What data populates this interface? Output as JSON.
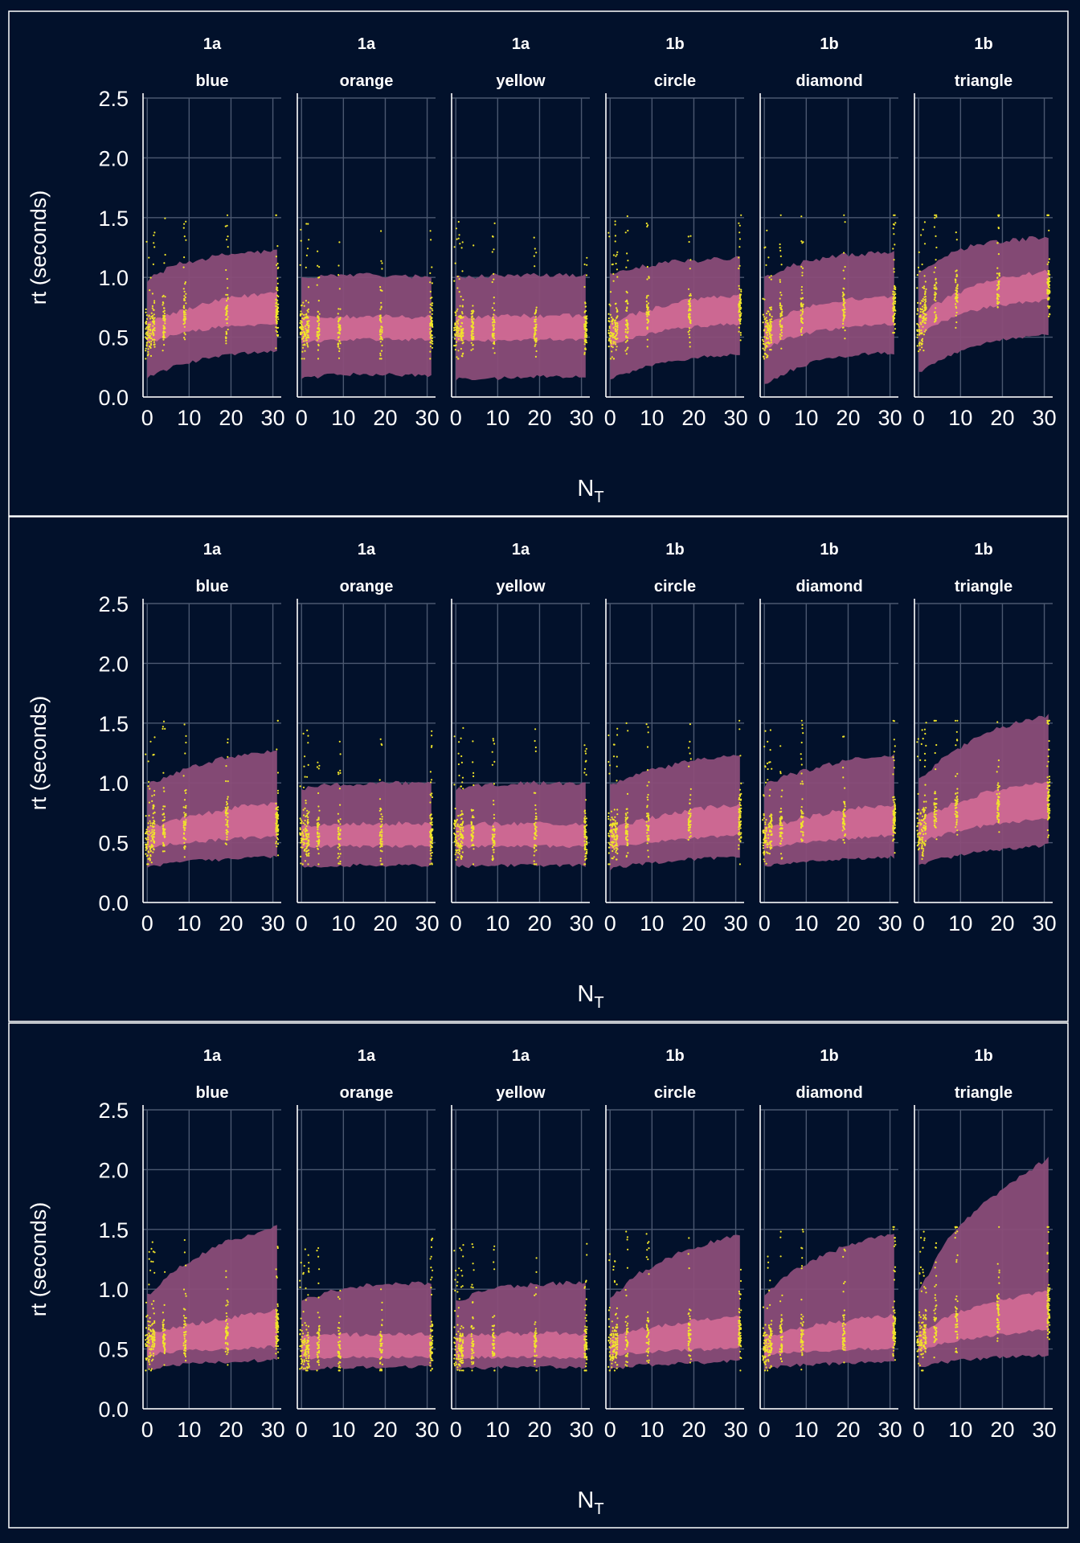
{
  "figure": {
    "background": "#02112b",
    "frame_color": "#ffffff",
    "grid_color": "#4b5870",
    "text_color": "#ffffff",
    "band_outer_color": "#8a4d78",
    "band_inner_color": "#d06a94",
    "point_color": "#f1e52a"
  },
  "chart_data": [
    {
      "type": "scatter",
      "xlabel": "N",
      "xlabel_subscript": "T",
      "ylabel": "rt (seconds)",
      "xlim": [
        -1,
        32
      ],
      "ylim": [
        0,
        2.5
      ],
      "x_ticks": [
        0,
        10,
        20,
        30
      ],
      "y_ticks": [
        "0.0",
        "0.5",
        "1.0",
        "1.5",
        "2.0",
        "2.5"
      ],
      "x_tick_labels": [
        "0",
        "10",
        "20",
        "30"
      ],
      "facets": [
        {
          "strip1": "1a",
          "strip2": "blue",
          "outer_lo": [
            0.17,
            0.25,
            0.31,
            0.35,
            0.37,
            0.38
          ],
          "inner_lo": [
            0.45,
            0.52,
            0.56,
            0.59,
            0.6,
            0.62
          ],
          "inner_hi": [
            0.62,
            0.7,
            0.76,
            0.82,
            0.85,
            0.88
          ],
          "outer_hi": [
            0.98,
            1.1,
            1.15,
            1.19,
            1.21,
            1.22
          ]
        },
        {
          "strip1": "1a",
          "strip2": "orange",
          "outer_lo": [
            0.15,
            0.18,
            0.19,
            0.19,
            0.18,
            0.18
          ],
          "inner_lo": [
            0.46,
            0.47,
            0.48,
            0.48,
            0.48,
            0.48
          ],
          "inner_hi": [
            0.67,
            0.67,
            0.67,
            0.67,
            0.67,
            0.67
          ],
          "outer_hi": [
            1.0,
            1.02,
            1.02,
            1.02,
            1.01,
            1.01
          ]
        },
        {
          "strip1": "1a",
          "strip2": "yellow",
          "outer_lo": [
            0.15,
            0.15,
            0.16,
            0.17,
            0.17,
            0.17
          ],
          "inner_lo": [
            0.47,
            0.47,
            0.48,
            0.48,
            0.48,
            0.48
          ],
          "inner_hi": [
            0.67,
            0.67,
            0.68,
            0.68,
            0.68,
            0.68
          ],
          "outer_hi": [
            1.0,
            1.01,
            1.02,
            1.02,
            1.02,
            1.02
          ]
        },
        {
          "strip1": "1b",
          "strip2": "circle",
          "outer_lo": [
            0.15,
            0.23,
            0.28,
            0.32,
            0.34,
            0.36
          ],
          "inner_lo": [
            0.43,
            0.5,
            0.55,
            0.58,
            0.6,
            0.61
          ],
          "inner_hi": [
            0.62,
            0.7,
            0.76,
            0.81,
            0.83,
            0.85
          ],
          "outer_hi": [
            1.02,
            1.08,
            1.12,
            1.14,
            1.15,
            1.16
          ]
        },
        {
          "strip1": "1b",
          "strip2": "diamond",
          "outer_lo": [
            0.1,
            0.22,
            0.3,
            0.34,
            0.36,
            0.37
          ],
          "inner_lo": [
            0.4,
            0.5,
            0.55,
            0.58,
            0.6,
            0.61
          ],
          "inner_hi": [
            0.6,
            0.7,
            0.77,
            0.81,
            0.83,
            0.85
          ],
          "outer_hi": [
            1.0,
            1.1,
            1.15,
            1.19,
            1.2,
            1.21
          ]
        },
        {
          "strip1": "1b",
          "strip2": "triangle",
          "outer_lo": [
            0.2,
            0.33,
            0.42,
            0.47,
            0.5,
            0.52
          ],
          "inner_lo": [
            0.52,
            0.64,
            0.72,
            0.76,
            0.79,
            0.81
          ],
          "inner_hi": [
            0.68,
            0.82,
            0.92,
            0.98,
            1.02,
            1.05
          ],
          "outer_hi": [
            1.05,
            1.18,
            1.26,
            1.3,
            1.32,
            1.34
          ]
        }
      ]
    },
    {
      "type": "scatter",
      "xlabel": "N",
      "xlabel_subscript": "T",
      "ylabel": "rt (seconds)",
      "xlim": [
        -1,
        32
      ],
      "ylim": [
        0,
        2.5
      ],
      "x_ticks": [
        0,
        10,
        20,
        30
      ],
      "y_ticks": [
        "0.0",
        "0.5",
        "1.0",
        "1.5",
        "2.0",
        "2.5"
      ],
      "x_tick_labels": [
        "0",
        "10",
        "20",
        "30"
      ],
      "facets": [
        {
          "strip1": "1a",
          "strip2": "blue",
          "outer_lo": [
            0.3,
            0.33,
            0.35,
            0.36,
            0.37,
            0.38
          ],
          "inner_lo": [
            0.46,
            0.49,
            0.51,
            0.53,
            0.54,
            0.55
          ],
          "inner_hi": [
            0.62,
            0.68,
            0.73,
            0.78,
            0.81,
            0.83
          ],
          "outer_hi": [
            0.98,
            1.08,
            1.15,
            1.21,
            1.25,
            1.28
          ]
        },
        {
          "strip1": "1a",
          "strip2": "orange",
          "outer_lo": [
            0.3,
            0.3,
            0.31,
            0.31,
            0.31,
            0.31
          ],
          "inner_lo": [
            0.46,
            0.47,
            0.47,
            0.47,
            0.47,
            0.47
          ],
          "inner_hi": [
            0.64,
            0.66,
            0.66,
            0.66,
            0.66,
            0.66
          ],
          "outer_hi": [
            0.95,
            0.98,
            0.99,
            1.0,
            1.0,
            1.0
          ]
        },
        {
          "strip1": "1a",
          "strip2": "yellow",
          "outer_lo": [
            0.3,
            0.3,
            0.31,
            0.31,
            0.31,
            0.31
          ],
          "inner_lo": [
            0.46,
            0.47,
            0.47,
            0.47,
            0.47,
            0.47
          ],
          "inner_hi": [
            0.64,
            0.66,
            0.66,
            0.66,
            0.66,
            0.66
          ],
          "outer_hi": [
            0.95,
            0.98,
            0.99,
            1.0,
            1.0,
            1.0
          ]
        },
        {
          "strip1": "1b",
          "strip2": "circle",
          "outer_lo": [
            0.28,
            0.32,
            0.34,
            0.36,
            0.37,
            0.38
          ],
          "inner_lo": [
            0.45,
            0.49,
            0.51,
            0.53,
            0.55,
            0.56
          ],
          "inner_hi": [
            0.62,
            0.68,
            0.73,
            0.77,
            0.8,
            0.82
          ],
          "outer_hi": [
            0.98,
            1.07,
            1.13,
            1.18,
            1.21,
            1.24
          ]
        },
        {
          "strip1": "1b",
          "strip2": "diamond",
          "outer_lo": [
            0.3,
            0.33,
            0.35,
            0.36,
            0.37,
            0.38
          ],
          "inner_lo": [
            0.45,
            0.49,
            0.51,
            0.53,
            0.55,
            0.56
          ],
          "inner_hi": [
            0.62,
            0.68,
            0.73,
            0.77,
            0.8,
            0.82
          ],
          "outer_hi": [
            0.98,
            1.07,
            1.13,
            1.18,
            1.21,
            1.24
          ]
        },
        {
          "strip1": "1b",
          "strip2": "triangle",
          "outer_lo": [
            0.32,
            0.37,
            0.41,
            0.44,
            0.46,
            0.48
          ],
          "inner_lo": [
            0.5,
            0.57,
            0.62,
            0.66,
            0.68,
            0.7
          ],
          "inner_hi": [
            0.68,
            0.8,
            0.88,
            0.94,
            0.98,
            1.01
          ],
          "outer_hi": [
            1.02,
            1.22,
            1.35,
            1.45,
            1.52,
            1.56
          ]
        }
      ]
    },
    {
      "type": "scatter",
      "xlabel": "N",
      "xlabel_subscript": "T",
      "ylabel": "rt (seconds)",
      "xlim": [
        -1,
        32
      ],
      "ylim": [
        0,
        2.5
      ],
      "x_ticks": [
        0,
        10,
        20,
        30
      ],
      "y_ticks": [
        "0.0",
        "0.5",
        "1.0",
        "1.5",
        "2.0",
        "2.5"
      ],
      "x_tick_labels": [
        "0",
        "10",
        "20",
        "30"
      ],
      "facets": [
        {
          "strip1": "1a",
          "strip2": "blue",
          "outer_lo": [
            0.33,
            0.36,
            0.38,
            0.39,
            0.4,
            0.41
          ],
          "inner_lo": [
            0.45,
            0.48,
            0.49,
            0.5,
            0.51,
            0.52
          ],
          "inner_hi": [
            0.62,
            0.68,
            0.72,
            0.76,
            0.79,
            0.82
          ],
          "outer_hi": [
            0.95,
            1.15,
            1.28,
            1.39,
            1.46,
            1.52
          ]
        },
        {
          "strip1": "1a",
          "strip2": "orange",
          "outer_lo": [
            0.33,
            0.34,
            0.35,
            0.35,
            0.35,
            0.35
          ],
          "inner_lo": [
            0.42,
            0.43,
            0.43,
            0.43,
            0.43,
            0.43
          ],
          "inner_hi": [
            0.6,
            0.62,
            0.62,
            0.62,
            0.62,
            0.62
          ],
          "outer_hi": [
            0.9,
            0.98,
            1.02,
            1.04,
            1.05,
            1.05
          ]
        },
        {
          "strip1": "1a",
          "strip2": "yellow",
          "outer_lo": [
            0.33,
            0.34,
            0.35,
            0.35,
            0.35,
            0.35
          ],
          "inner_lo": [
            0.42,
            0.43,
            0.43,
            0.43,
            0.43,
            0.43
          ],
          "inner_hi": [
            0.6,
            0.62,
            0.63,
            0.63,
            0.63,
            0.63
          ],
          "outer_hi": [
            0.9,
            0.98,
            1.02,
            1.04,
            1.05,
            1.05
          ]
        },
        {
          "strip1": "1b",
          "strip2": "circle",
          "outer_lo": [
            0.33,
            0.36,
            0.37,
            0.38,
            0.39,
            0.4
          ],
          "inner_lo": [
            0.44,
            0.47,
            0.48,
            0.49,
            0.5,
            0.51
          ],
          "inner_hi": [
            0.6,
            0.66,
            0.7,
            0.73,
            0.76,
            0.78
          ],
          "outer_hi": [
            0.92,
            1.12,
            1.24,
            1.33,
            1.4,
            1.45
          ]
        },
        {
          "strip1": "1b",
          "strip2": "diamond",
          "outer_lo": [
            0.33,
            0.36,
            0.37,
            0.38,
            0.39,
            0.4
          ],
          "inner_lo": [
            0.44,
            0.47,
            0.48,
            0.49,
            0.5,
            0.51
          ],
          "inner_hi": [
            0.6,
            0.66,
            0.7,
            0.73,
            0.76,
            0.78
          ],
          "outer_hi": [
            0.95,
            1.14,
            1.26,
            1.35,
            1.42,
            1.47
          ]
        },
        {
          "strip1": "1b",
          "strip2": "triangle",
          "outer_lo": [
            0.35,
            0.39,
            0.41,
            0.43,
            0.44,
            0.45
          ],
          "inner_lo": [
            0.48,
            0.55,
            0.59,
            0.62,
            0.64,
            0.66
          ],
          "inner_hi": [
            0.64,
            0.76,
            0.84,
            0.9,
            0.95,
            0.99
          ],
          "outer_hi": [
            0.98,
            1.38,
            1.62,
            1.8,
            1.96,
            2.1
          ]
        }
      ]
    }
  ]
}
